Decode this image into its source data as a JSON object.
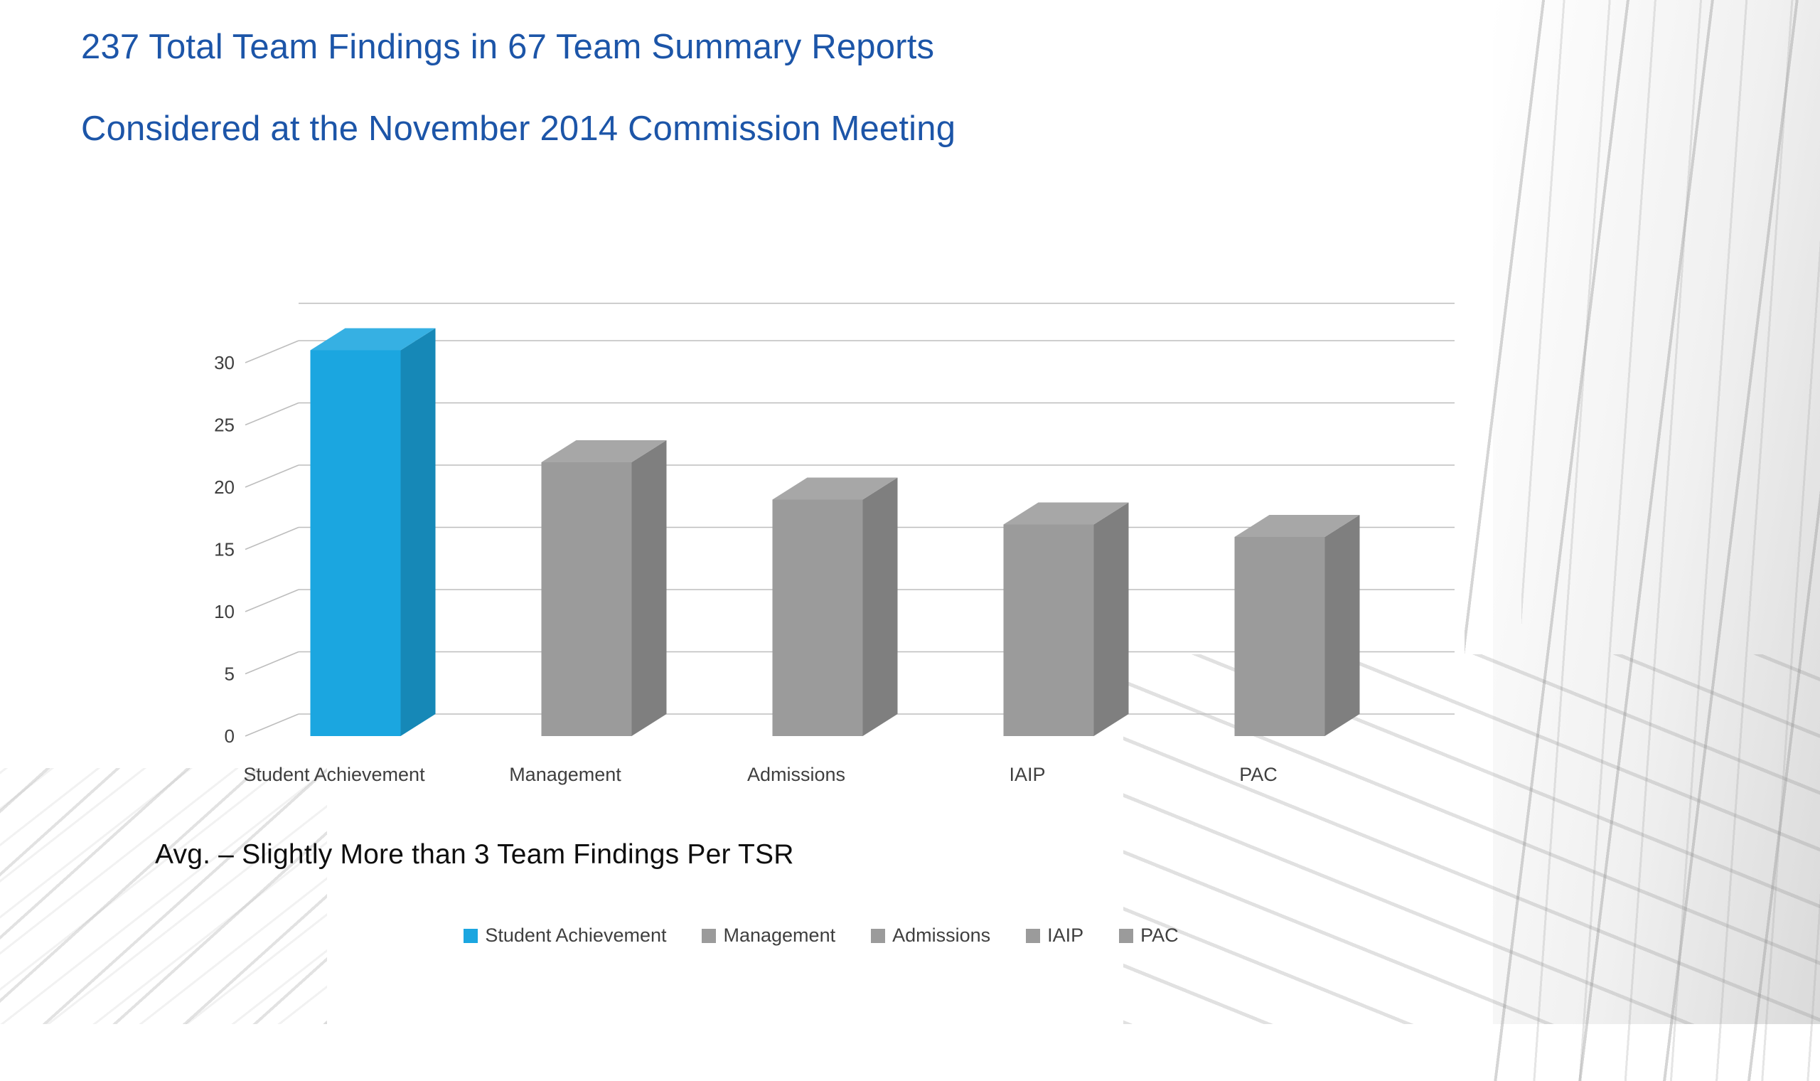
{
  "slide": {
    "title_line1": "237 Total Team Findings in 67 Team Summary Reports",
    "title_line2": "Considered at the November 2014 Commission Meeting",
    "title_color": "#1c55a8",
    "annotation": "Avg. – Slightly More than 3 Team Findings Per TSR"
  },
  "chart_data": {
    "type": "bar",
    "projection": "3d-oblique",
    "title": "",
    "xlabel": "",
    "ylabel": "",
    "categories": [
      "Student Achievement",
      "Management",
      "Admissions",
      "IAIP",
      "PAC"
    ],
    "values": [
      31,
      22,
      19,
      17,
      16
    ],
    "bar_colors": [
      "#1ba6e0",
      "#9b9b9b",
      "#9b9b9b",
      "#9b9b9b",
      "#9b9b9b"
    ],
    "yticks": [
      0,
      5,
      10,
      15,
      20,
      25,
      30
    ],
    "ylim": [
      0,
      33
    ],
    "grid": true,
    "gridline_color": "#bdbdbd",
    "label_color": "#3f3f3f",
    "legend": {
      "position": "bottom",
      "entries": [
        {
          "label": "Student Achievement",
          "color": "#1ba6e0"
        },
        {
          "label": "Management",
          "color": "#9b9b9b"
        },
        {
          "label": "Admissions",
          "color": "#9b9b9b"
        },
        {
          "label": "IAIP",
          "color": "#9b9b9b"
        },
        {
          "label": "PAC",
          "color": "#9b9b9b"
        }
      ]
    }
  }
}
